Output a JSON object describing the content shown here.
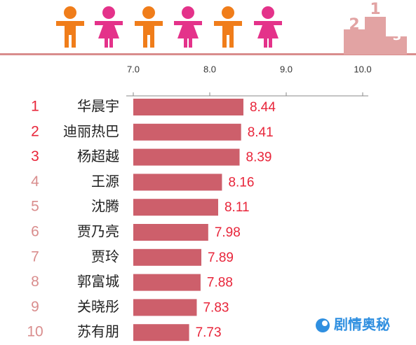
{
  "chart_data": {
    "type": "bar",
    "orientation": "horizontal",
    "ranks": [
      1,
      2,
      3,
      4,
      5,
      6,
      7,
      8,
      9,
      10
    ],
    "categories": [
      "华晨宇",
      "迪丽热巴",
      "杨超越",
      "王源",
      "沈腾",
      "贾乃亮",
      "贾玲",
      "郭富城",
      "关晓彤",
      "苏有朋"
    ],
    "values": [
      8.44,
      8.41,
      8.39,
      8.16,
      8.11,
      7.98,
      7.89,
      7.88,
      7.83,
      7.73
    ],
    "color": "#cd5f6b",
    "value_label_color": "#e8253a",
    "rank_colors": [
      "#e8253a",
      "#e8253a",
      "#e8253a",
      "#d98d8d",
      "#d98d8d",
      "#d98d8d",
      "#d98d8d",
      "#d98d8d",
      "#d98d8d",
      "#d98d8d"
    ],
    "xlim": [
      7.0,
      10.0
    ],
    "xticks": [
      {
        "value": 7,
        "label": "7.0"
      },
      {
        "value": 8,
        "label": "8.0"
      },
      {
        "value": 9,
        "label": "9.0"
      },
      {
        "value": 10,
        "label": "10.0"
      }
    ]
  },
  "header": {
    "podium_labels": [
      "2",
      "1",
      "3"
    ]
  },
  "watermark": "剧情奥秘"
}
